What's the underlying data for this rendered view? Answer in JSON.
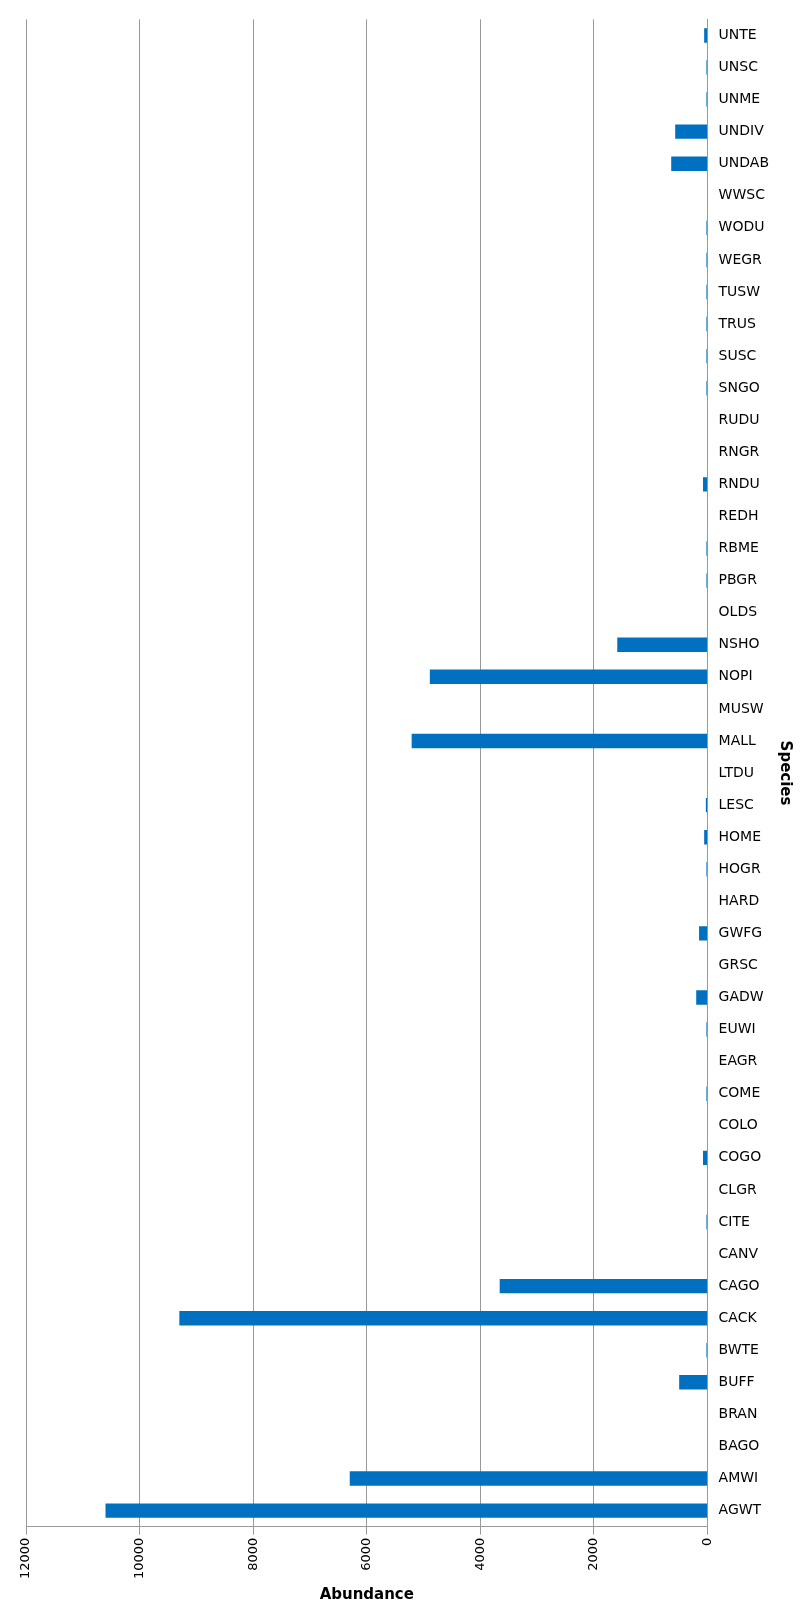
{
  "chart_data": {
    "type": "bar",
    "orientation": "horizontal",
    "xlabel": "Abundance",
    "ylabel": "Species",
    "categories": [
      "UNTE",
      "UNSC",
      "UNME",
      "UNDIV",
      "UNDAB",
      "WWSC",
      "WODU",
      "WEGR",
      "TUSW",
      "TRUS",
      "SUSC",
      "SNGO",
      "RUDU",
      "RNGR",
      "RNDU",
      "REDH",
      "RBME",
      "PBGR",
      "OLDS",
      "NSHO",
      "NOPI",
      "MUSW",
      "MALL",
      "LTDU",
      "LESC",
      "HOME",
      "HOGR",
      "HARD",
      "GWFG",
      "GRSC",
      "GADW",
      "EUWI",
      "EAGR",
      "COME",
      "COLO",
      "COGO",
      "CLGR",
      "CITE",
      "CANV",
      "CAGO",
      "CACK",
      "BWTE",
      "BUFF",
      "BRAN",
      "BAGO",
      "AMWI",
      "AGWT"
    ],
    "values": [
      60,
      20,
      20,
      570,
      640,
      0,
      20,
      20,
      20,
      20,
      20,
      20,
      0,
      0,
      80,
      0,
      20,
      20,
      0,
      1590,
      4890,
      0,
      5210,
      0,
      30,
      60,
      20,
      0,
      150,
      0,
      200,
      20,
      0,
      20,
      0,
      80,
      0,
      20,
      0,
      3660,
      9300,
      20,
      500,
      0,
      0,
      6300,
      10600
    ],
    "color": "#0070c0",
    "xlim": [
      12000,
      0
    ],
    "xticks": [
      12000,
      10000,
      8000,
      6000,
      4000,
      2000,
      0
    ],
    "grid": "x",
    "legend": false
  }
}
